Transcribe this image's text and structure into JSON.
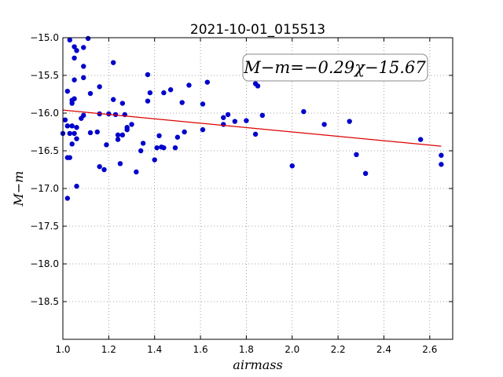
{
  "chart_data": {
    "type": "scatter",
    "title": "2021-10-01_015513",
    "xlabel": "airmass",
    "ylabel": "M−m",
    "xlim": [
      1.0,
      2.7
    ],
    "ylim": [
      -15.0,
      -19.0
    ],
    "y_inverted": true,
    "grid": true,
    "x_ticks": [
      1.0,
      1.2,
      1.4,
      1.6,
      1.8,
      2.0,
      2.2,
      2.4,
      2.6
    ],
    "x_tick_labels": [
      "1.0",
      "1.2",
      "1.4",
      "1.6",
      "1.8",
      "2.0",
      "2.2",
      "2.4",
      "2.6"
    ],
    "y_ticks": [
      -15.0,
      -15.5,
      -16.0,
      -16.5,
      -17.0,
      -17.5,
      -18.0,
      -18.5
    ],
    "y_tick_labels": [
      "−15.0",
      "−15.5",
      "−16.0",
      "−16.5",
      "−17.0",
      "−17.5",
      "−18.0",
      "−18.5"
    ],
    "annotation": "M−m=−0.29χ−15.67",
    "fit": {
      "slope": -0.29,
      "intercept": -15.67,
      "x_range": [
        1.0,
        2.65
      ]
    },
    "colors": {
      "points": "#0000cc",
      "fit_line": "#dd0000",
      "grid": "#888888"
    },
    "points": [
      [
        1.0,
        -16.27
      ],
      [
        1.01,
        -16.09
      ],
      [
        1.02,
        -15.71
      ],
      [
        1.02,
        -16.17
      ],
      [
        1.02,
        -16.59
      ],
      [
        1.02,
        -17.13
      ],
      [
        1.03,
        -15.03
      ],
      [
        1.03,
        -16.27
      ],
      [
        1.03,
        -16.59
      ],
      [
        1.04,
        -15.87
      ],
      [
        1.04,
        -16.17
      ],
      [
        1.04,
        -15.83
      ],
      [
        1.04,
        -16.41
      ],
      [
        1.05,
        -15.12
      ],
      [
        1.05,
        -15.27
      ],
      [
        1.05,
        -15.56
      ],
      [
        1.05,
        -15.81
      ],
      [
        1.05,
        -16.27
      ],
      [
        1.06,
        -15.17
      ],
      [
        1.06,
        -16.19
      ],
      [
        1.06,
        -16.34
      ],
      [
        1.06,
        -16.97
      ],
      [
        1.08,
        -16.07
      ],
      [
        1.09,
        -15.13
      ],
      [
        1.09,
        -15.38
      ],
      [
        1.09,
        -15.53
      ],
      [
        1.09,
        -16.03
      ],
      [
        1.11,
        -15.01
      ],
      [
        1.12,
        -15.74
      ],
      [
        1.12,
        -16.26
      ],
      [
        1.15,
        -16.25
      ],
      [
        1.16,
        -15.65
      ],
      [
        1.16,
        -16.01
      ],
      [
        1.16,
        -16.71
      ],
      [
        1.18,
        -16.75
      ],
      [
        1.19,
        -16.42
      ],
      [
        1.2,
        -16.01
      ],
      [
        1.22,
        -15.33
      ],
      [
        1.22,
        -15.82
      ],
      [
        1.23,
        -16.02
      ],
      [
        1.24,
        -16.29
      ],
      [
        1.24,
        -16.35
      ],
      [
        1.25,
        -16.67
      ],
      [
        1.26,
        -15.87
      ],
      [
        1.26,
        -16.29
      ],
      [
        1.27,
        -16.02
      ],
      [
        1.28,
        -16.19
      ],
      [
        1.28,
        -16.22
      ],
      [
        1.3,
        -16.15
      ],
      [
        1.32,
        -16.78
      ],
      [
        1.34,
        -16.5
      ],
      [
        1.35,
        -16.4
      ],
      [
        1.37,
        -15.49
      ],
      [
        1.37,
        -15.84
      ],
      [
        1.38,
        -15.73
      ],
      [
        1.4,
        -16.62
      ],
      [
        1.41,
        -16.46
      ],
      [
        1.42,
        -16.3
      ],
      [
        1.43,
        -16.45
      ],
      [
        1.44,
        -15.73
      ],
      [
        1.44,
        -16.46
      ],
      [
        1.47,
        -15.69
      ],
      [
        1.49,
        -16.46
      ],
      [
        1.5,
        -16.32
      ],
      [
        1.52,
        -15.86
      ],
      [
        1.53,
        -16.25
      ],
      [
        1.55,
        -15.63
      ],
      [
        1.61,
        -15.88
      ],
      [
        1.61,
        -16.22
      ],
      [
        1.63,
        -15.59
      ],
      [
        1.7,
        -16.06
      ],
      [
        1.7,
        -16.15
      ],
      [
        1.72,
        -16.02
      ],
      [
        1.75,
        -16.11
      ],
      [
        1.8,
        -16.1
      ],
      [
        1.84,
        -16.28
      ],
      [
        1.84,
        -15.61
      ],
      [
        1.85,
        -15.64
      ],
      [
        1.87,
        -16.03
      ],
      [
        2.0,
        -16.7
      ],
      [
        2.05,
        -15.98
      ],
      [
        2.14,
        -16.15
      ],
      [
        2.25,
        -16.11
      ],
      [
        2.28,
        -16.55
      ],
      [
        2.32,
        -16.8
      ],
      [
        2.56,
        -16.35
      ],
      [
        2.65,
        -16.56
      ],
      [
        2.65,
        -16.68
      ]
    ]
  }
}
